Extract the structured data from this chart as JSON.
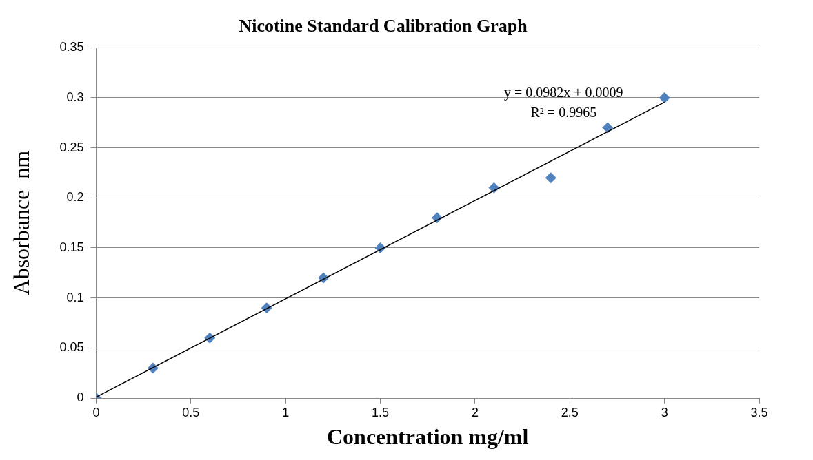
{
  "chart_data": {
    "type": "scatter",
    "title": "Nicotine Standard Calibration Graph",
    "xlabel": "Concentration mg/ml",
    "ylabel": "Absorbance  nm",
    "x": [
      0,
      0.3,
      0.6,
      0.9,
      1.2,
      1.5,
      1.8,
      2.1,
      2.4,
      2.7,
      3
    ],
    "series": [
      {
        "type": "scatter",
        "color": "#4f81bd",
        "marker": "diamond",
        "values": [
          0,
          0.03,
          0.06,
          0.09,
          0.12,
          0.15,
          0.18,
          0.21,
          0.22,
          0.27,
          0.3
        ]
      },
      {
        "type": "line",
        "color": "#000000",
        "marker": "none",
        "x": [
          0,
          3
        ],
        "values": [
          0.0009,
          0.2955
        ]
      }
    ],
    "xlim": [
      0,
      3.5
    ],
    "xticks": [
      0,
      0.5,
      1,
      1.5,
      2,
      2.5,
      3,
      3.5
    ],
    "ylim": [
      0,
      0.35
    ],
    "yticks": [
      0,
      0.05,
      0.1,
      0.15,
      0.2,
      0.25,
      0.3,
      0.35
    ],
    "grid": "y",
    "legend": false,
    "annotations": [
      "y = 0.0982x + 0.0009",
      "R² = 0.9965"
    ]
  }
}
